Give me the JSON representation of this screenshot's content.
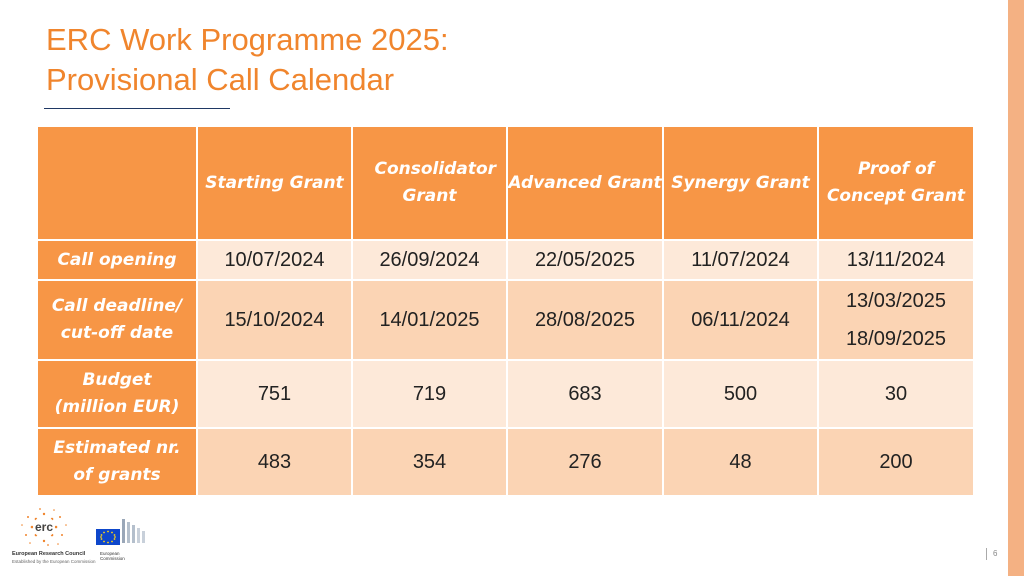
{
  "slide": {
    "title_line1": "ERC Work Programme 2025:",
    "title_line2": "Provisional Call Calendar",
    "page_number": "6",
    "accent_color": "#f0852d"
  },
  "table": {
    "columns": [
      "Starting Grant",
      "Consolidator Grant",
      "Advanced Grant",
      "Synergy Grant",
      "Proof of Concept Grant"
    ],
    "rows": [
      {
        "label": "Call opening",
        "values": [
          "10/07/2024",
          "26/09/2024",
          "22/05/2025",
          "11/07/2024",
          "13/11/2024"
        ]
      },
      {
        "label": "Call deadline/ cut-off date",
        "values": [
          "15/10/2024",
          "14/01/2025",
          "28/08/2025",
          "06/11/2024"
        ],
        "poc_values": [
          "13/03/2025",
          "18/09/2025"
        ]
      },
      {
        "label": "Budget (million EUR)",
        "values": [
          "751",
          "719",
          "683",
          "500",
          "30"
        ]
      },
      {
        "label": "Estimated nr. of grants",
        "values": [
          "483",
          "354",
          "276",
          "48",
          "200"
        ]
      }
    ]
  },
  "footer": {
    "erc_logo_text": "erc",
    "erc_name": "European Research Council",
    "erc_tagline": "Established by the European Commission",
    "ec_name_line1": "European",
    "ec_name_line2": "Commission"
  }
}
